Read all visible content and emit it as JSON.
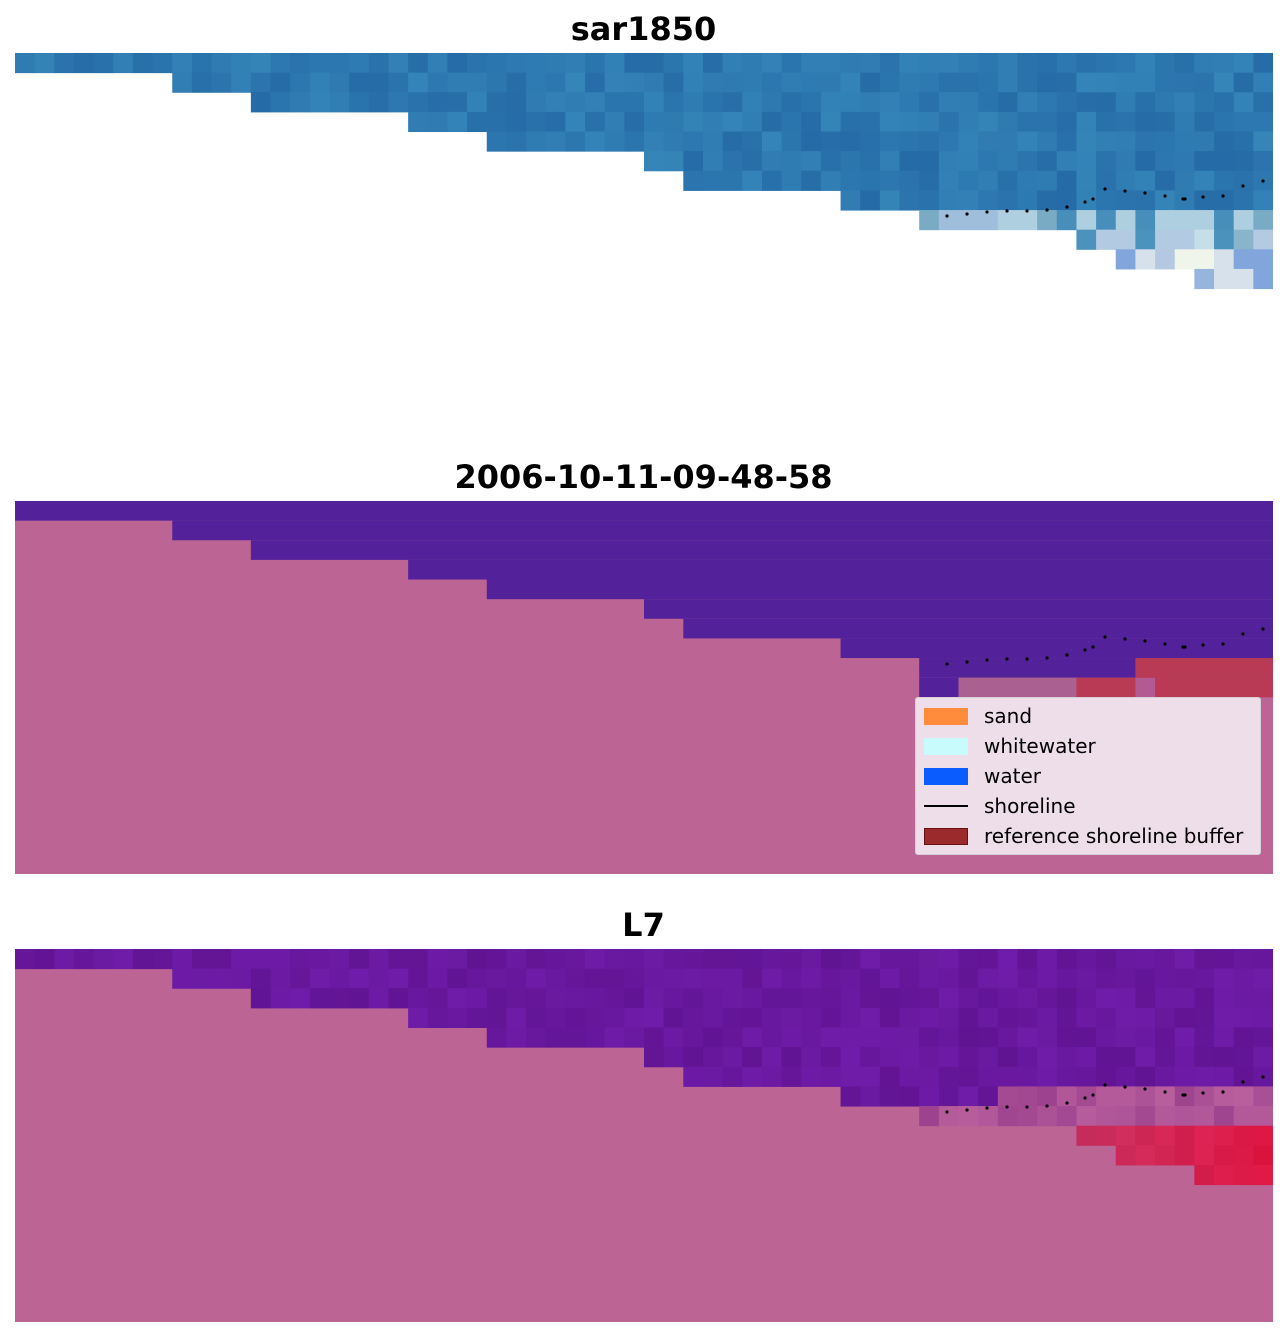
{
  "panels": [
    {
      "title": "sar1850",
      "kind": "satellite-rgb"
    },
    {
      "title": "2006-10-11-09-48-58",
      "kind": "classification"
    },
    {
      "title": "L7",
      "kind": "index-map"
    }
  ],
  "legend": {
    "items": [
      {
        "label": "sand",
        "type": "patch",
        "color": "#ff8c3c"
      },
      {
        "label": "whitewater",
        "type": "patch",
        "color": "#c8fcfc"
      },
      {
        "label": "water",
        "type": "patch",
        "color": "#0a5cff"
      },
      {
        "label": "shoreline",
        "type": "line",
        "color": "#000000"
      },
      {
        "label": "reference shoreline buffer",
        "type": "patch",
        "color": "#9b2a2c"
      }
    ]
  },
  "colors": {
    "nodata": "#bc6494",
    "class_water": "#53229a",
    "buffer": "#b93a54",
    "sar_water": "#2d78b0",
    "l7_water": "#6a189e",
    "l7_buffer": "#c8103c"
  }
}
